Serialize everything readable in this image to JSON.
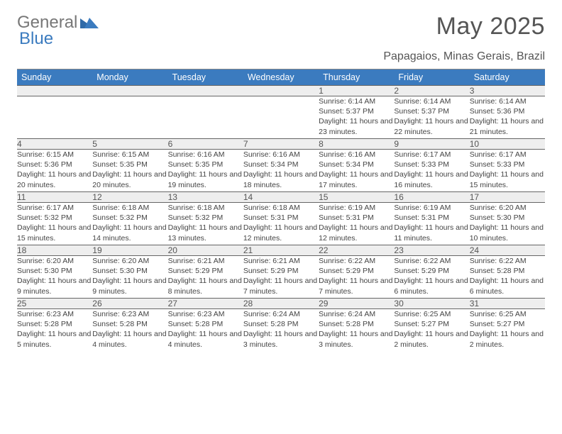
{
  "logo": {
    "part1": "General",
    "part2": "Blue"
  },
  "title": "May 2025",
  "subtitle": "Papagaios, Minas Gerais, Brazil",
  "colors": {
    "header_bg": "#3b7bbf",
    "header_fg": "#ffffff",
    "daynum_bg": "#eeeeee",
    "rule": "#888888",
    "cell_border": "#666666"
  },
  "day_headers": [
    "Sunday",
    "Monday",
    "Tuesday",
    "Wednesday",
    "Thursday",
    "Friday",
    "Saturday"
  ],
  "weeks": [
    [
      null,
      null,
      null,
      null,
      {
        "n": "1",
        "sunrise": "6:14 AM",
        "sunset": "5:37 PM",
        "daylight": "11 hours and 23 minutes."
      },
      {
        "n": "2",
        "sunrise": "6:14 AM",
        "sunset": "5:37 PM",
        "daylight": "11 hours and 22 minutes."
      },
      {
        "n": "3",
        "sunrise": "6:14 AM",
        "sunset": "5:36 PM",
        "daylight": "11 hours and 21 minutes."
      }
    ],
    [
      {
        "n": "4",
        "sunrise": "6:15 AM",
        "sunset": "5:36 PM",
        "daylight": "11 hours and 20 minutes."
      },
      {
        "n": "5",
        "sunrise": "6:15 AM",
        "sunset": "5:35 PM",
        "daylight": "11 hours and 20 minutes."
      },
      {
        "n": "6",
        "sunrise": "6:16 AM",
        "sunset": "5:35 PM",
        "daylight": "11 hours and 19 minutes."
      },
      {
        "n": "7",
        "sunrise": "6:16 AM",
        "sunset": "5:34 PM",
        "daylight": "11 hours and 18 minutes."
      },
      {
        "n": "8",
        "sunrise": "6:16 AM",
        "sunset": "5:34 PM",
        "daylight": "11 hours and 17 minutes."
      },
      {
        "n": "9",
        "sunrise": "6:17 AM",
        "sunset": "5:33 PM",
        "daylight": "11 hours and 16 minutes."
      },
      {
        "n": "10",
        "sunrise": "6:17 AM",
        "sunset": "5:33 PM",
        "daylight": "11 hours and 15 minutes."
      }
    ],
    [
      {
        "n": "11",
        "sunrise": "6:17 AM",
        "sunset": "5:32 PM",
        "daylight": "11 hours and 15 minutes."
      },
      {
        "n": "12",
        "sunrise": "6:18 AM",
        "sunset": "5:32 PM",
        "daylight": "11 hours and 14 minutes."
      },
      {
        "n": "13",
        "sunrise": "6:18 AM",
        "sunset": "5:32 PM",
        "daylight": "11 hours and 13 minutes."
      },
      {
        "n": "14",
        "sunrise": "6:18 AM",
        "sunset": "5:31 PM",
        "daylight": "11 hours and 12 minutes."
      },
      {
        "n": "15",
        "sunrise": "6:19 AM",
        "sunset": "5:31 PM",
        "daylight": "11 hours and 12 minutes."
      },
      {
        "n": "16",
        "sunrise": "6:19 AM",
        "sunset": "5:31 PM",
        "daylight": "11 hours and 11 minutes."
      },
      {
        "n": "17",
        "sunrise": "6:20 AM",
        "sunset": "5:30 PM",
        "daylight": "11 hours and 10 minutes."
      }
    ],
    [
      {
        "n": "18",
        "sunrise": "6:20 AM",
        "sunset": "5:30 PM",
        "daylight": "11 hours and 9 minutes."
      },
      {
        "n": "19",
        "sunrise": "6:20 AM",
        "sunset": "5:30 PM",
        "daylight": "11 hours and 9 minutes."
      },
      {
        "n": "20",
        "sunrise": "6:21 AM",
        "sunset": "5:29 PM",
        "daylight": "11 hours and 8 minutes."
      },
      {
        "n": "21",
        "sunrise": "6:21 AM",
        "sunset": "5:29 PM",
        "daylight": "11 hours and 7 minutes."
      },
      {
        "n": "22",
        "sunrise": "6:22 AM",
        "sunset": "5:29 PM",
        "daylight": "11 hours and 7 minutes."
      },
      {
        "n": "23",
        "sunrise": "6:22 AM",
        "sunset": "5:29 PM",
        "daylight": "11 hours and 6 minutes."
      },
      {
        "n": "24",
        "sunrise": "6:22 AM",
        "sunset": "5:28 PM",
        "daylight": "11 hours and 6 minutes."
      }
    ],
    [
      {
        "n": "25",
        "sunrise": "6:23 AM",
        "sunset": "5:28 PM",
        "daylight": "11 hours and 5 minutes."
      },
      {
        "n": "26",
        "sunrise": "6:23 AM",
        "sunset": "5:28 PM",
        "daylight": "11 hours and 4 minutes."
      },
      {
        "n": "27",
        "sunrise": "6:23 AM",
        "sunset": "5:28 PM",
        "daylight": "11 hours and 4 minutes."
      },
      {
        "n": "28",
        "sunrise": "6:24 AM",
        "sunset": "5:28 PM",
        "daylight": "11 hours and 3 minutes."
      },
      {
        "n": "29",
        "sunrise": "6:24 AM",
        "sunset": "5:28 PM",
        "daylight": "11 hours and 3 minutes."
      },
      {
        "n": "30",
        "sunrise": "6:25 AM",
        "sunset": "5:27 PM",
        "daylight": "11 hours and 2 minutes."
      },
      {
        "n": "31",
        "sunrise": "6:25 AM",
        "sunset": "5:27 PM",
        "daylight": "11 hours and 2 minutes."
      }
    ]
  ],
  "labels": {
    "sunrise": "Sunrise: ",
    "sunset": "Sunset: ",
    "daylight": "Daylight: "
  }
}
